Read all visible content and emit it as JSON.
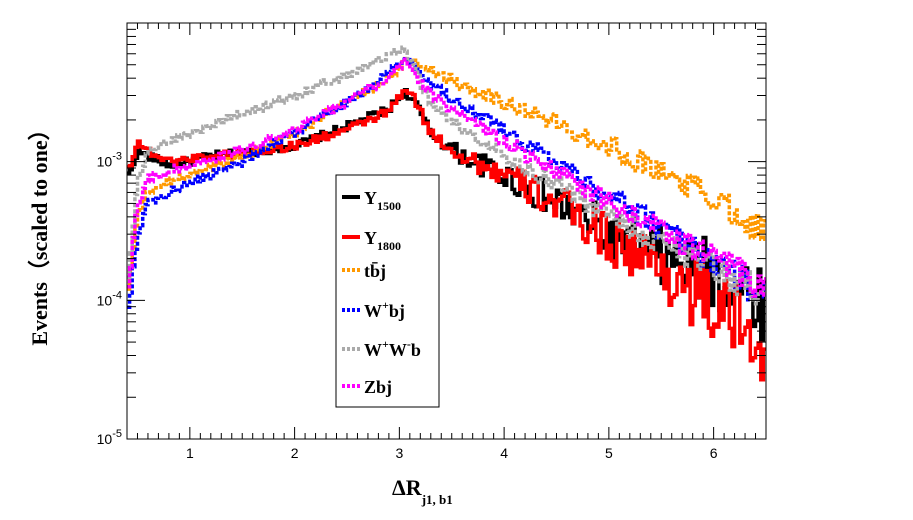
{
  "chart_data": {
    "type": "line",
    "style": "step-histogram",
    "title": "",
    "xlabel": "ΔR",
    "xlabel_sub": "j1, b1",
    "ylabel": "Events（scaled to one）",
    "xlim": [
      0.4,
      6.5
    ],
    "ylim": [
      1e-05,
      0.01
    ],
    "yscale": "log",
    "x_ticks": [
      1,
      2,
      3,
      4,
      5,
      6
    ],
    "x_tick_labels": [
      "1",
      "2",
      "3",
      "4",
      "5",
      "6"
    ],
    "y_ticks": [
      0.001,
      0.0001,
      1e-05
    ],
    "y_tick_labels": [
      {
        "base": "10",
        "exp": "-3"
      },
      {
        "base": "10",
        "exp": "-4"
      },
      {
        "base": "10",
        "exp": "-5"
      }
    ],
    "legend_position": "center",
    "series": [
      {
        "name": "Y",
        "sub": "1500",
        "sup": "",
        "color": "#000000",
        "style": "solid",
        "x": [
          0.42,
          0.5,
          0.6,
          0.8,
          1.0,
          1.2,
          1.5,
          2.0,
          2.5,
          2.9,
          3.05,
          3.15,
          3.3,
          3.6,
          4.0,
          4.5,
          5.0,
          5.5,
          6.0,
          6.3,
          6.5
        ],
        "y": [
          0.0008,
          0.0012,
          0.0011,
          0.00095,
          0.001,
          0.0011,
          0.00115,
          0.0013,
          0.0018,
          0.0024,
          0.0032,
          0.0027,
          0.0016,
          0.0011,
          0.0008,
          0.0005,
          0.0003,
          0.0002,
          0.00015,
          0.00012,
          0.0001
        ]
      },
      {
        "name": "Y",
        "sub": "1800",
        "sup": "",
        "color": "#ff0000",
        "style": "solid",
        "x": [
          0.42,
          0.5,
          0.6,
          0.8,
          1.0,
          1.2,
          1.5,
          2.0,
          2.5,
          2.9,
          3.05,
          3.15,
          3.3,
          3.6,
          4.0,
          4.5,
          5.0,
          5.5,
          6.0,
          6.3,
          6.5
        ],
        "y": [
          0.0009,
          0.0014,
          0.0012,
          0.001,
          0.00105,
          0.0011,
          0.00115,
          0.0013,
          0.0017,
          0.0023,
          0.0033,
          0.0028,
          0.0016,
          0.0011,
          0.0008,
          0.0005,
          0.00028,
          0.00017,
          9e-05,
          6e-05,
          5e-05
        ]
      },
      {
        "name": "tb̄j",
        "sub": "",
        "sup": "",
        "color": "#ff9900",
        "style": "dashed",
        "x": [
          0.42,
          0.5,
          0.6,
          0.8,
          1.0,
          1.5,
          2.0,
          2.5,
          2.9,
          3.1,
          3.3,
          3.6,
          4.0,
          4.5,
          5.0,
          5.5,
          6.0,
          6.3,
          6.5
        ],
        "y": [
          0.00012,
          0.0004,
          0.0006,
          0.00072,
          0.0008,
          0.0011,
          0.0016,
          0.0027,
          0.004,
          0.0055,
          0.0046,
          0.0036,
          0.0027,
          0.0019,
          0.0013,
          0.00085,
          0.00055,
          0.0004,
          0.0003
        ]
      },
      {
        "name": "W",
        "sub": "",
        "sup": "+",
        "suffix": "bj",
        "color": "#0000ff",
        "style": "dashed",
        "x": [
          0.42,
          0.5,
          0.6,
          0.8,
          1.0,
          1.5,
          2.0,
          2.5,
          2.9,
          3.05,
          3.15,
          3.3,
          3.6,
          4.0,
          4.5,
          5.0,
          5.5,
          6.0,
          6.3,
          6.5
        ],
        "y": [
          9e-05,
          0.0003,
          0.0005,
          0.0006,
          0.0007,
          0.001,
          0.0016,
          0.0027,
          0.0043,
          0.0057,
          0.0048,
          0.0036,
          0.0026,
          0.0017,
          0.001,
          0.00058,
          0.00033,
          0.00019,
          0.00013,
          0.0001
        ]
      },
      {
        "name": "W",
        "sub": "",
        "sup": "+",
        "mid": "W",
        "sup2": "-",
        "suffix": "b",
        "color": "#aaaaaa",
        "style": "dashed",
        "x": [
          0.42,
          0.5,
          0.6,
          0.8,
          1.0,
          1.5,
          2.0,
          2.5,
          2.9,
          3.05,
          3.15,
          3.3,
          3.6,
          4.0,
          4.5,
          5.0,
          5.5,
          6.0,
          6.3,
          6.5
        ],
        "y": [
          0.00015,
          0.0007,
          0.0012,
          0.0014,
          0.0016,
          0.0022,
          0.003,
          0.0042,
          0.0058,
          0.0068,
          0.0046,
          0.0026,
          0.0017,
          0.0011,
          0.00068,
          0.00042,
          0.00026,
          0.00017,
          0.00013,
          0.00011
        ]
      },
      {
        "name": "Zbj",
        "sub": "",
        "sup": "",
        "color": "#ff00ff",
        "style": "dashed",
        "x": [
          0.42,
          0.5,
          0.6,
          0.8,
          1.0,
          1.5,
          2.0,
          2.5,
          2.9,
          3.05,
          3.15,
          3.3,
          3.6,
          4.0,
          4.5,
          5.0,
          5.5,
          6.0,
          6.3,
          6.5
        ],
        "y": [
          0.00013,
          0.0005,
          0.00075,
          0.00085,
          0.00095,
          0.0012,
          0.0017,
          0.0027,
          0.004,
          0.0053,
          0.0043,
          0.0031,
          0.0021,
          0.0014,
          0.00085,
          0.00052,
          0.00032,
          0.0002,
          0.00015,
          0.00012
        ]
      }
    ]
  }
}
